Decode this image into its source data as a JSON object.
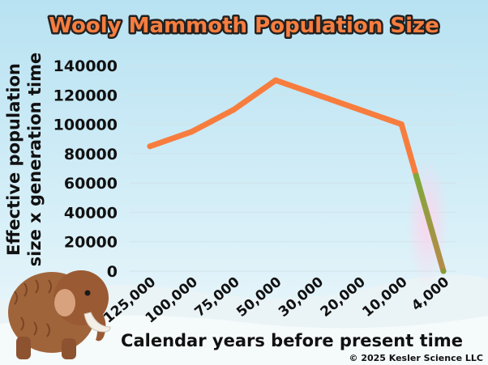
{
  "title": "Wooly Mammoth Population Size",
  "footer": "© 2025 Kesler Science LLC",
  "colors": {
    "line": "#F77D3E",
    "line_end": "#8A9A35",
    "title_fill": "#F77D3E"
  },
  "chart_data": {
    "type": "line",
    "title": "Wooly Mammoth Population Size",
    "xlabel": "Calendar years before present time",
    "ylabel": [
      "Effective population",
      "size x generation time"
    ],
    "categories": [
      "125,000",
      "100,000",
      "75,000",
      "50,000",
      "30,000",
      "20,000",
      "10,000",
      "4,000"
    ],
    "series": [
      {
        "values": [
          85000,
          95000,
          110000,
          130000,
          120000,
          110000,
          100000,
          0
        ]
      }
    ],
    "yticks": [
      "0",
      "20000",
      "40000",
      "60000",
      "80000",
      "100000",
      "120000",
      "140000"
    ],
    "ylim": [
      0,
      140000
    ],
    "grid": true
  }
}
